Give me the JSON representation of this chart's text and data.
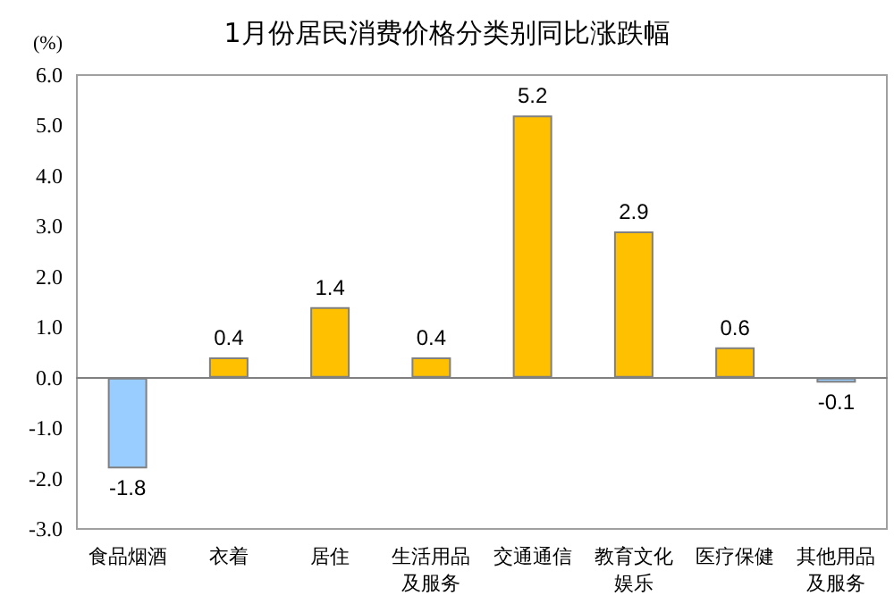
{
  "chart_data": {
    "type": "bar",
    "title": "1月份居民消费价格分类别同比涨跌幅",
    "ylabel": "(%)",
    "categories": [
      "食品烟酒",
      "衣着",
      "居住",
      "生活用品及服务",
      "交通通信",
      "教育文化娱乐",
      "医疗保健",
      "其他用品及服务"
    ],
    "values": [
      -1.8,
      0.4,
      1.4,
      0.4,
      5.2,
      2.9,
      0.6,
      -0.1
    ],
    "colors": [
      "#99ccff",
      "#ffc000",
      "#ffc000",
      "#ffc000",
      "#ffc000",
      "#ffc000",
      "#ffc000",
      "#99ccff"
    ],
    "ylim": [
      -3,
      6
    ],
    "yticks": [
      {
        "value": -3,
        "label": "-3.0"
      },
      {
        "value": -2,
        "label": "-2.0"
      },
      {
        "value": -1,
        "label": "-1.0"
      },
      {
        "value": 0,
        "label": "0.0"
      },
      {
        "value": 1,
        "label": "1.0"
      },
      {
        "value": 2,
        "label": "2.0"
      },
      {
        "value": 3,
        "label": "3.0"
      },
      {
        "value": 4,
        "label": "4.0"
      },
      {
        "value": 5,
        "label": "5.0"
      },
      {
        "value": 6,
        "label": "6.0"
      }
    ],
    "data_labels": true
  }
}
